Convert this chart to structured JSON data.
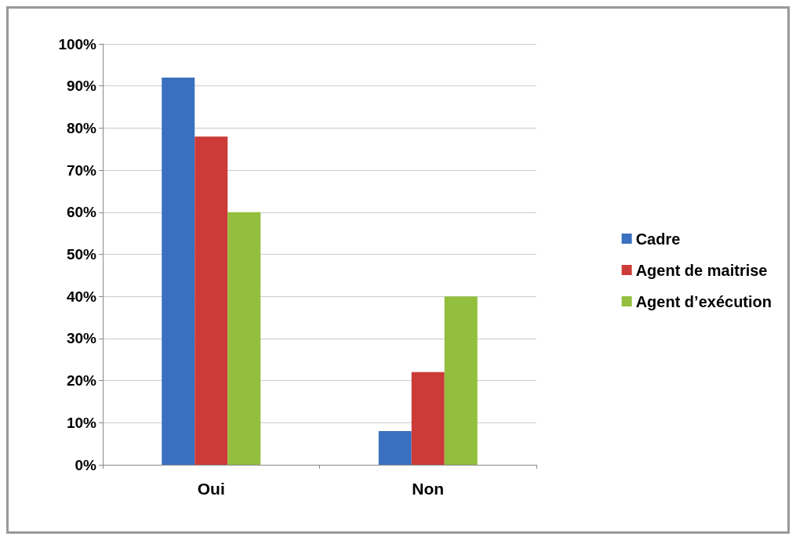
{
  "chart_data": {
    "type": "bar",
    "categories": [
      "Oui",
      "Non"
    ],
    "series": [
      {
        "name": "Cadre",
        "color": "#3a70c0",
        "values": [
          92,
          8
        ]
      },
      {
        "name": "Agent de maitrise",
        "color": "#cc3b38",
        "values": [
          78,
          22
        ]
      },
      {
        "name": "Agent d’exécution",
        "color": "#93bf3e",
        "values": [
          60,
          40
        ]
      }
    ],
    "ylim": [
      0,
      100
    ],
    "yticks": [
      {
        "value": 0,
        "label": "0%"
      },
      {
        "value": 10,
        "label": "10%"
      },
      {
        "value": 20,
        "label": "20%"
      },
      {
        "value": 30,
        "label": "30%"
      },
      {
        "value": 40,
        "label": "40%"
      },
      {
        "value": 50,
        "label": "50%"
      },
      {
        "value": 60,
        "label": "60%"
      },
      {
        "value": 70,
        "label": "70%"
      },
      {
        "value": 80,
        "label": "80%"
      },
      {
        "value": 90,
        "label": "90%"
      },
      {
        "value": 100,
        "label": "100%"
      }
    ],
    "grid": "y",
    "legend": "right"
  }
}
